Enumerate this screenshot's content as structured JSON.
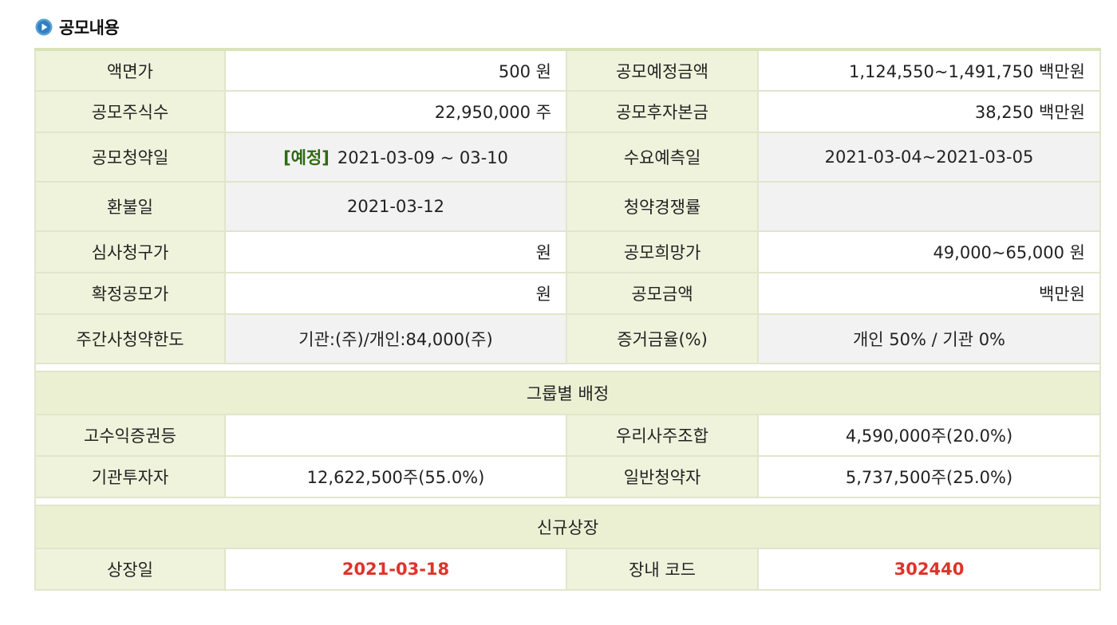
{
  "section_title": "공모내용",
  "rows": {
    "face_value": {
      "label": "액면가",
      "value": "500 원"
    },
    "planned_amount": {
      "label": "공모예정금액",
      "value": "1,124,550~1,491,750 백만원"
    },
    "offering_shares": {
      "label": "공모주식수",
      "value": "22,950,000 주"
    },
    "post_capital": {
      "label": "공모후자본금",
      "value": "38,250 백만원"
    },
    "subscription_date": {
      "label": "공모청약일",
      "tag": "[예정]",
      "value": "2021-03-09 ~ 03-10"
    },
    "demand_forecast_date": {
      "label": "수요예측일",
      "value": "2021-03-04~2021-03-05"
    },
    "refund_date": {
      "label": "환불일",
      "value": "2021-03-12"
    },
    "competition_rate": {
      "label": "청약경쟁률",
      "value": ""
    },
    "review_price": {
      "label": "심사청구가",
      "value": "원"
    },
    "desired_price": {
      "label": "공모희망가",
      "value": "49,000~65,000 원"
    },
    "final_price": {
      "label": "확정공모가",
      "value": "원"
    },
    "offering_amount": {
      "label": "공모금액",
      "value": "백만원"
    },
    "underwriter_limit": {
      "label": "주간사청약한도",
      "value": "기관:(주)/개인:84,000(주)"
    },
    "deposit_rate": {
      "label": "증거금율(%)",
      "value": "개인 50% / 기관 0%"
    }
  },
  "group_allocation": {
    "header": "그룹별 배정",
    "high_yield": {
      "label": "고수익증권등",
      "value": ""
    },
    "employee_union": {
      "label": "우리사주조합",
      "value": "4,590,000주(20.0%)"
    },
    "institutional": {
      "label": "기관투자자",
      "value": "12,622,500주(55.0%)"
    },
    "retail": {
      "label": "일반청약자",
      "value": "5,737,500주(25.0%)"
    }
  },
  "new_listing": {
    "header": "신규상장",
    "listing_date": {
      "label": "상장일",
      "value": "2021-03-18"
    },
    "exchange_code": {
      "label": "장내 코드",
      "value": "302440"
    }
  },
  "colors": {
    "accent_red": "#e0322a",
    "tag_green": "#2e6b12",
    "label_bg": "#f0f3dc"
  }
}
